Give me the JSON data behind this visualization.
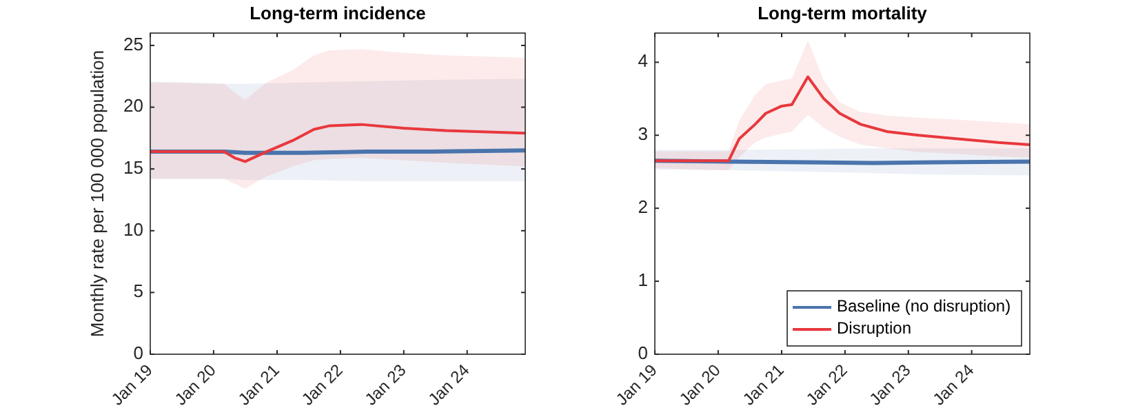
{
  "chart_data": [
    {
      "type": "line",
      "title": "Long-term incidence",
      "ylabel": "Monthly rate per 100 000 population",
      "xlim": [
        "2019-01",
        "2024-12"
      ],
      "xticks": [
        {
          "value": "2019-01",
          "label": "Jan 19"
        },
        {
          "value": "2020-01",
          "label": "Jan 20"
        },
        {
          "value": "2021-01",
          "label": "Jan 21"
        },
        {
          "value": "2022-01",
          "label": "Jan 22"
        },
        {
          "value": "2023-01",
          "label": "Jan 23"
        },
        {
          "value": "2024-01",
          "label": "Jan 24"
        }
      ],
      "ylim": [
        0,
        26
      ],
      "yticks": [
        0,
        5,
        10,
        15,
        20,
        25
      ],
      "grid": false,
      "legend": false,
      "series": [
        {
          "color": "#4a74ac",
          "x": [
            "2019-01",
            "2020-03",
            "2020-07",
            "2021-06",
            "2022-06",
            "2023-06",
            "2024-12"
          ],
          "values": [
            16.4,
            16.4,
            16.3,
            16.3,
            16.4,
            16.4,
            16.5
          ],
          "lower": [
            14.2,
            14.2,
            14.1,
            14.1,
            14.0,
            14.0,
            14.0
          ],
          "upper": [
            22.1,
            21.9,
            21.9,
            22.0,
            22.1,
            22.2,
            22.3
          ]
        },
        {
          "color": "#e8383d",
          "x": [
            "2019-01",
            "2020-03",
            "2020-05",
            "2020-07",
            "2020-11",
            "2021-04",
            "2021-08",
            "2021-11",
            "2022-05",
            "2023-01",
            "2023-09",
            "2024-12"
          ],
          "values": [
            16.4,
            16.4,
            15.9,
            15.6,
            16.4,
            17.3,
            18.2,
            18.5,
            18.6,
            18.3,
            18.1,
            17.9
          ],
          "lower": [
            14.2,
            14.2,
            13.8,
            13.4,
            14.4,
            15.2,
            15.7,
            15.8,
            15.9,
            15.7,
            15.5,
            15.2
          ],
          "upper": [
            22.0,
            21.9,
            21.2,
            20.6,
            22.0,
            23.0,
            24.2,
            24.6,
            24.7,
            24.4,
            24.2,
            24.0
          ]
        }
      ]
    },
    {
      "type": "line",
      "title": "Long-term mortality",
      "xlim": [
        "2019-01",
        "2024-12"
      ],
      "xticks": [
        {
          "value": "2019-01",
          "label": "Jan 19"
        },
        {
          "value": "2020-01",
          "label": "Jan 20"
        },
        {
          "value": "2021-01",
          "label": "Jan 21"
        },
        {
          "value": "2022-01",
          "label": "Jan 22"
        },
        {
          "value": "2023-01",
          "label": "Jan 23"
        },
        {
          "value": "2024-01",
          "label": "Jan 24"
        }
      ],
      "ylim": [
        0,
        4.4
      ],
      "yticks": [
        0,
        1,
        2,
        3,
        4
      ],
      "grid": false,
      "legend": "bottom right",
      "series": [
        {
          "name": "Baseline (no disruption)",
          "color": "#4a74ac",
          "x": [
            "2019-01",
            "2020-03",
            "2021-06",
            "2022-06",
            "2023-06",
            "2024-12"
          ],
          "values": [
            2.65,
            2.64,
            2.63,
            2.62,
            2.63,
            2.64
          ],
          "lower": [
            2.53,
            2.52,
            2.5,
            2.48,
            2.46,
            2.45
          ],
          "upper": [
            2.8,
            2.8,
            2.81,
            2.82,
            2.82,
            2.82
          ]
        },
        {
          "name": "Disruption",
          "color": "#e8383d",
          "x": [
            "2019-01",
            "2020-03",
            "2020-05",
            "2020-08",
            "2020-10",
            "2021-01",
            "2021-03",
            "2021-06",
            "2021-09",
            "2021-12",
            "2022-04",
            "2022-09",
            "2023-03",
            "2023-09",
            "2024-06",
            "2024-12"
          ],
          "values": [
            2.65,
            2.65,
            2.95,
            3.15,
            3.3,
            3.4,
            3.42,
            3.8,
            3.5,
            3.3,
            3.15,
            3.05,
            3.0,
            2.96,
            2.9,
            2.87
          ],
          "lower": [
            2.55,
            2.52,
            2.7,
            2.9,
            2.97,
            3.02,
            3.05,
            3.28,
            3.1,
            2.98,
            2.87,
            2.82,
            2.77,
            2.75,
            2.71,
            2.69
          ],
          "upper": [
            2.78,
            2.78,
            3.2,
            3.55,
            3.7,
            3.75,
            3.78,
            4.3,
            3.75,
            3.45,
            3.32,
            3.27,
            3.24,
            3.22,
            3.18,
            3.15
          ]
        }
      ]
    }
  ]
}
